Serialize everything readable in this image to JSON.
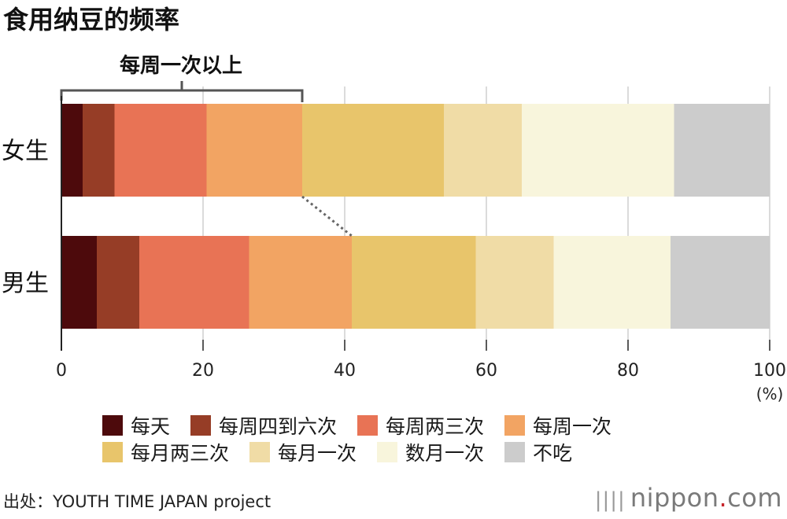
{
  "chart_data": {
    "type": "bar",
    "orientation": "horizontal",
    "stacked": true,
    "title": "食用纳豆的频率",
    "bracket_label": "每周一次以上",
    "categories": [
      "女生",
      "男生"
    ],
    "series": [
      {
        "name": "每天",
        "color": "#4d0a0c",
        "values": [
          3,
          5
        ]
      },
      {
        "name": "每周四到六次",
        "color": "#963d26",
        "values": [
          4.5,
          6
        ]
      },
      {
        "name": "每周两三次",
        "color": "#e87355",
        "values": [
          13,
          15.5
        ]
      },
      {
        "name": "每周一次",
        "color": "#f2a463",
        "values": [
          13.5,
          14.5
        ]
      },
      {
        "name": "每月两三次",
        "color": "#e8c56b",
        "values": [
          20,
          17.5
        ]
      },
      {
        "name": "每月一次",
        "color": "#f0dca6",
        "values": [
          11,
          11
        ]
      },
      {
        "name": "数月一次",
        "color": "#f8f5dc",
        "values": [
          21.5,
          16.5
        ]
      },
      {
        "name": "不吃",
        "color": "#cccccc",
        "values": [
          13.5,
          14
        ]
      }
    ],
    "x_ticks": [
      "0",
      "20",
      "40",
      "60",
      "80",
      "100"
    ],
    "xlim": [
      0,
      100
    ],
    "x_unit": "(%)",
    "grid": true,
    "legend_position": "bottom"
  },
  "legend_rows": [
    [
      {
        "label": "每天",
        "color": "#4d0a0c"
      },
      {
        "label": "每周四到六次",
        "color": "#963d26"
      },
      {
        "label": "每周两三次",
        "color": "#e87355"
      },
      {
        "label": "每周一次",
        "color": "#f2a463"
      }
    ],
    [
      {
        "label": "每月两三次",
        "color": "#e8c56b"
      },
      {
        "label": "每月一次",
        "color": "#f0dca6"
      },
      {
        "label": "数月一次",
        "color": "#f8f5dc"
      },
      {
        "label": "不吃",
        "color": "#cccccc"
      }
    ]
  ],
  "source": "出处：YOUTH TIME JAPAN project",
  "logo": {
    "word": "nippon",
    "dot": ".",
    "suffix": "com",
    "dot_color": "#c6252b"
  }
}
